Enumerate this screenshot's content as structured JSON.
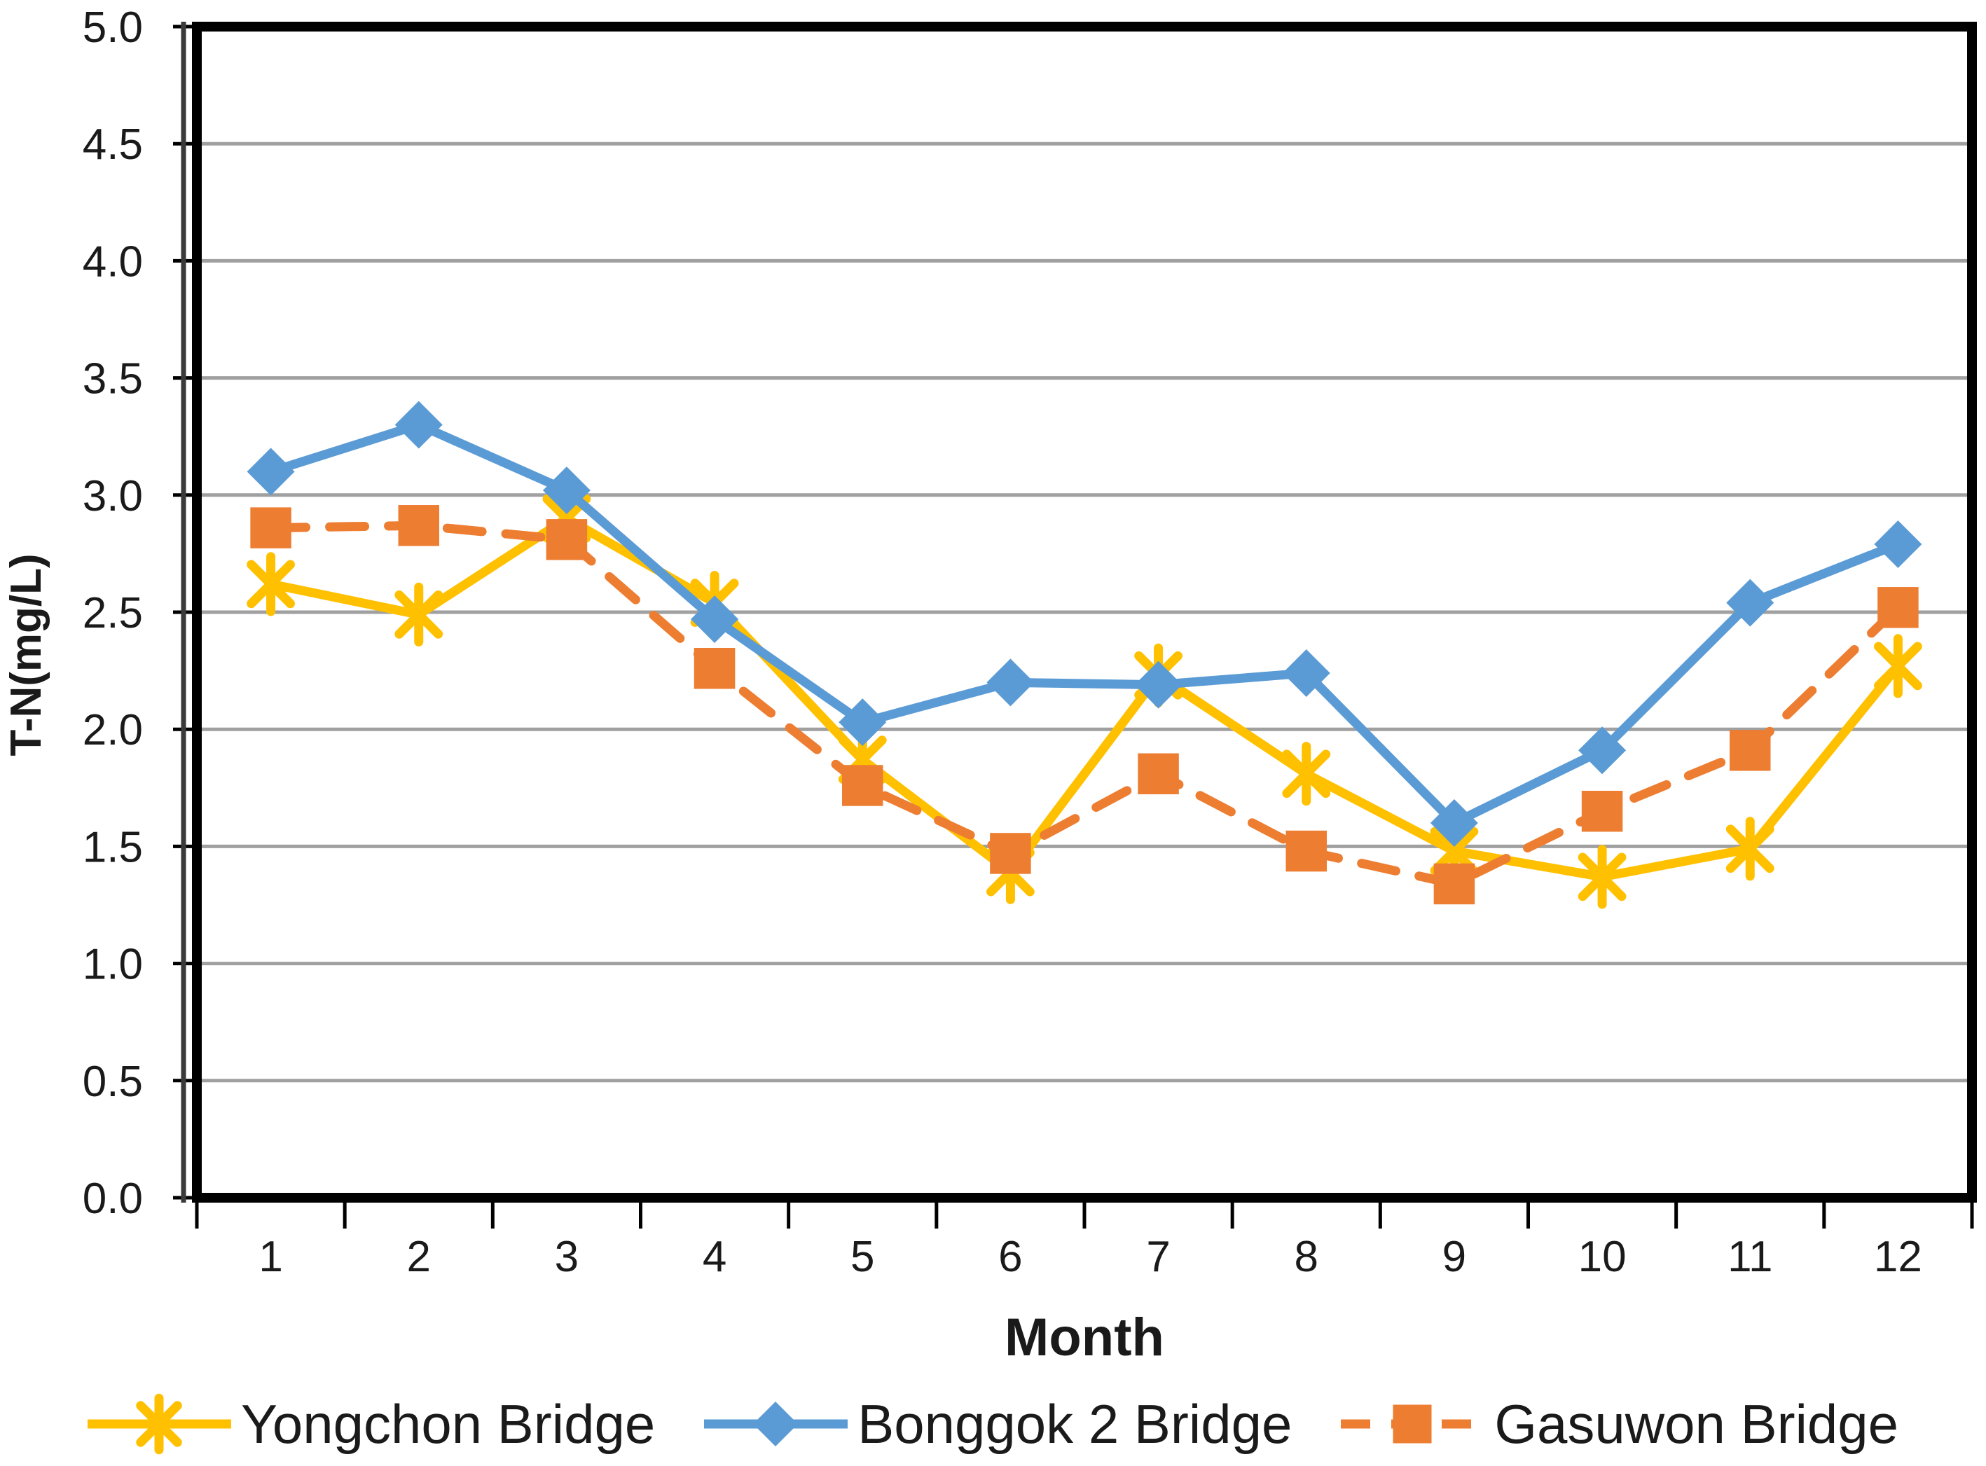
{
  "chart_data": {
    "type": "line",
    "title": "",
    "xlabel": "Month",
    "ylabel": "T-N(mg/L)",
    "categories": [
      "1",
      "2",
      "3",
      "4",
      "5",
      "6",
      "7",
      "8",
      "9",
      "10",
      "11",
      "12"
    ],
    "ylim": [
      0.0,
      5.0
    ],
    "ytick_step": 0.5,
    "ytick_labels": [
      "0.0",
      "0.5",
      "1.0",
      "1.5",
      "2.0",
      "2.5",
      "3.0",
      "3.5",
      "4.0",
      "4.5",
      "5.0"
    ],
    "grid": "horizontal",
    "legend_position": "bottom",
    "series": [
      {
        "name": "Yongchon Bridge",
        "color": "#FFC000",
        "marker": "asterisk",
        "line_style": "solid",
        "values": [
          2.62,
          2.49,
          2.9,
          2.54,
          1.87,
          1.39,
          2.23,
          1.81,
          1.48,
          1.37,
          1.49,
          2.27
        ]
      },
      {
        "name": "Bonggok 2 Bridge",
        "color": "#5B9BD5",
        "marker": "diamond",
        "line_style": "solid",
        "values": [
          3.1,
          3.3,
          3.02,
          2.47,
          2.03,
          2.2,
          2.19,
          2.24,
          1.6,
          1.91,
          2.54,
          2.79
        ]
      },
      {
        "name": "Gasuwon Bridge",
        "color": "#ED7D31",
        "marker": "square",
        "line_style": "dashed",
        "values": [
          2.86,
          2.87,
          2.81,
          2.26,
          1.76,
          1.47,
          1.81,
          1.48,
          1.34,
          1.65,
          1.91,
          2.52
        ]
      }
    ],
    "axis_color": "#000000",
    "gridline_color": "#A0A0A0",
    "background_color": "#FFFFFF"
  }
}
